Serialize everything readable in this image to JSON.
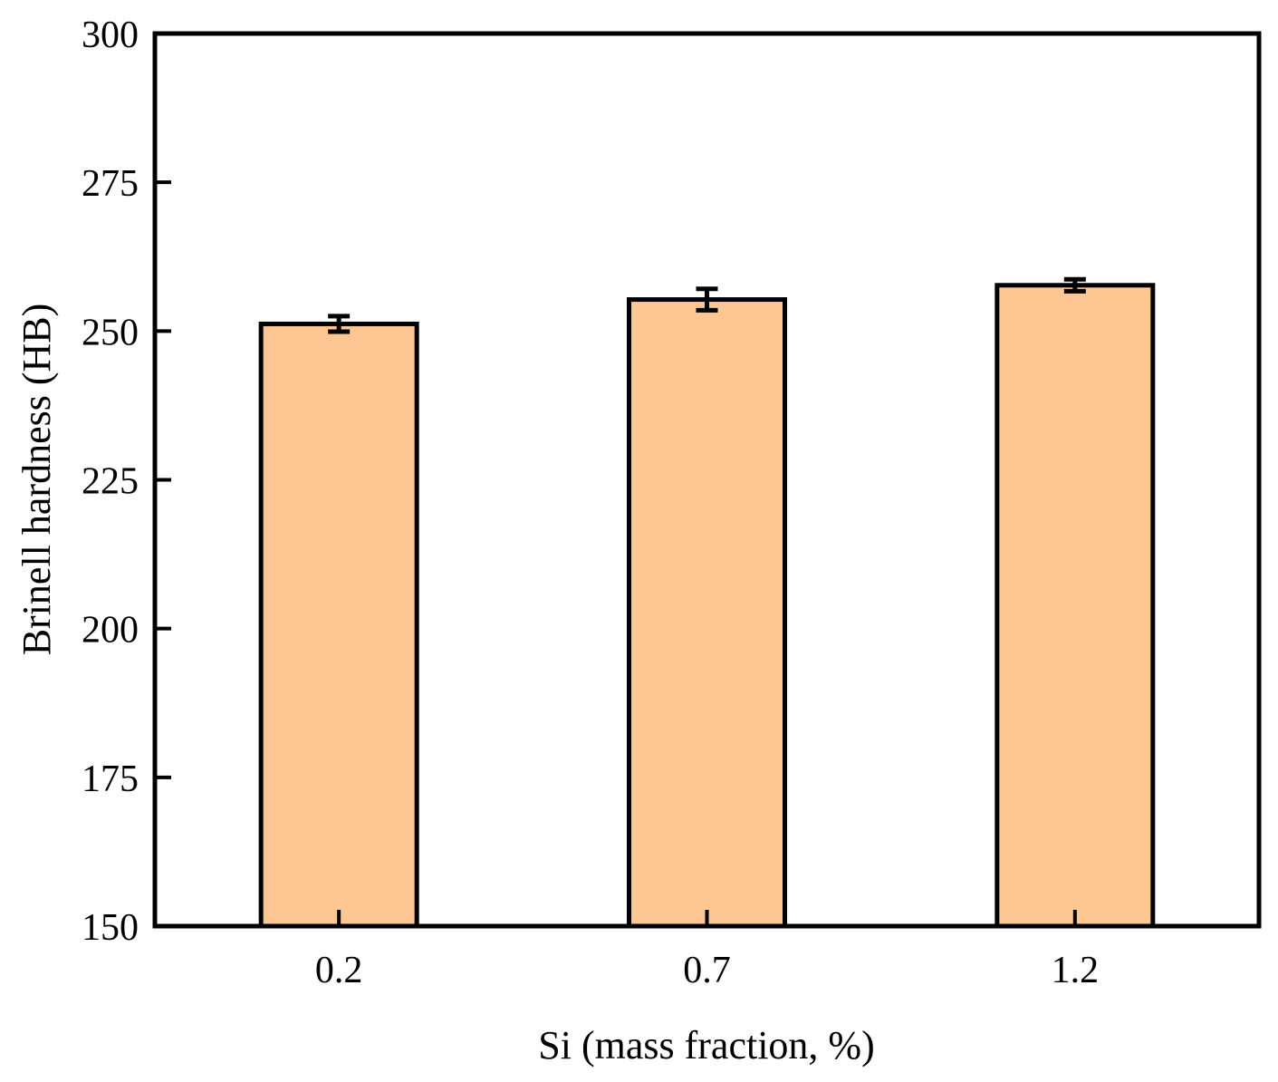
{
  "chart_data": {
    "type": "bar",
    "title": "",
    "xlabel": "Si (mass fraction, %)",
    "ylabel": "Brinell hardness (HB)",
    "categories": [
      "0.2",
      "0.7",
      "1.2"
    ],
    "values": [
      251.2,
      255.3,
      257.7
    ],
    "errors": [
      1.3,
      1.8,
      1.0
    ],
    "ylim": [
      150,
      300
    ],
    "yticks": [
      150,
      175,
      200,
      225,
      250,
      275,
      300
    ],
    "ytick_labels": [
      "150",
      "175",
      "200",
      "225",
      "250",
      "275",
      "300"
    ],
    "grid": false,
    "legend": "none",
    "bar_color": "#FDC794",
    "edge_color": "#000000"
  }
}
